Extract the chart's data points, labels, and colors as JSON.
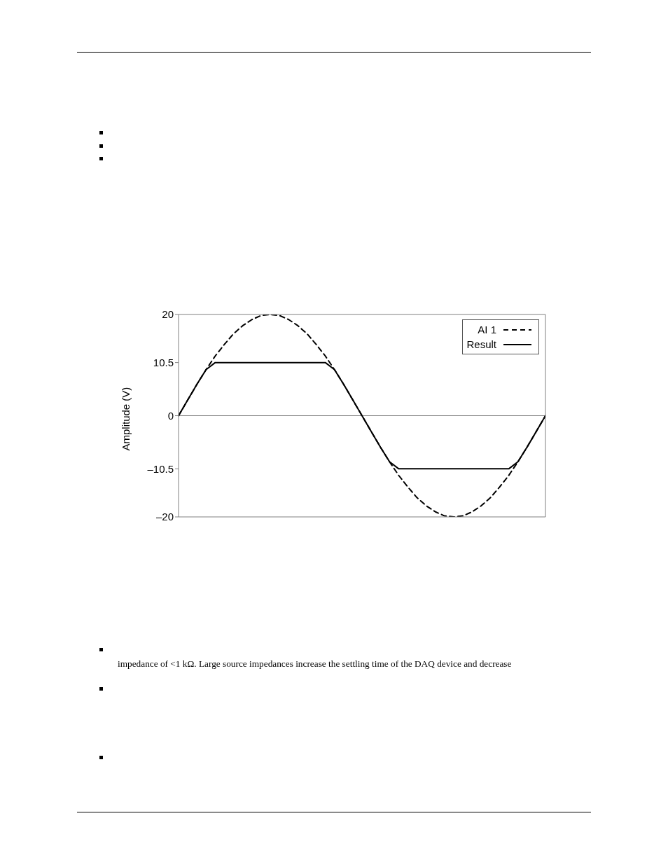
{
  "chart_data": {
    "type": "line",
    "ylabel": "Amplitude (V)",
    "categories": [
      null,
      null,
      null,
      null,
      null,
      null,
      null,
      null,
      null,
      null,
      null,
      null,
      null,
      null,
      null,
      null,
      null,
      null,
      null,
      null,
      null,
      null,
      null,
      null,
      null,
      null,
      null,
      null,
      null,
      null,
      null,
      null,
      null,
      null,
      null,
      null,
      null,
      null,
      null,
      null,
      null
    ],
    "series": [
      {
        "name": "AI 1",
        "color": "#000000",
        "line_style": "dashed",
        "values": [
          0,
          3.1,
          6.2,
          9.1,
          11.8,
          14.1,
          16.2,
          17.8,
          19.0,
          19.8,
          20,
          19.8,
          19.0,
          17.8,
          16.2,
          14.1,
          11.8,
          9.1,
          6.2,
          3.1,
          0,
          -3.1,
          -6.2,
          -9.1,
          -11.8,
          -14.1,
          -16.2,
          -17.8,
          -19.0,
          -19.8,
          -20,
          -19.8,
          -19.0,
          -17.8,
          -16.2,
          -14.1,
          -11.8,
          -9.1,
          -6.2,
          -3.1,
          0
        ]
      },
      {
        "name": "Result",
        "color": "#000000",
        "line_style": "solid",
        "values": [
          0,
          3.1,
          6.2,
          9.1,
          10.5,
          10.5,
          10.5,
          10.5,
          10.5,
          10.5,
          10.5,
          10.5,
          10.5,
          10.5,
          10.5,
          10.5,
          10.5,
          9.1,
          6.2,
          3.1,
          0,
          -3.1,
          -6.2,
          -9.1,
          -10.5,
          -10.5,
          -10.5,
          -10.5,
          -10.5,
          -10.5,
          -10.5,
          -10.5,
          -10.5,
          -10.5,
          -10.5,
          -10.5,
          -10.5,
          -9.1,
          -6.2,
          -3.1,
          0
        ]
      }
    ],
    "ylim": [
      -20,
      20
    ],
    "yticks": [
      20,
      10.5,
      0,
      {
        "value": -10.5,
        "label": "–10.5"
      },
      {
        "value": -20,
        "label": "–20"
      }
    ],
    "ref_lines": [
      {
        "axis": "y",
        "value": 0,
        "color": "#808080"
      }
    ],
    "grid": false,
    "legend": "top right",
    "marker": "none",
    "tick_labels": "y",
    "annotations": [
      "impedance of <1 kΩ. Large source impedances increase the settling time of the DAQ device and decrease"
    ]
  }
}
